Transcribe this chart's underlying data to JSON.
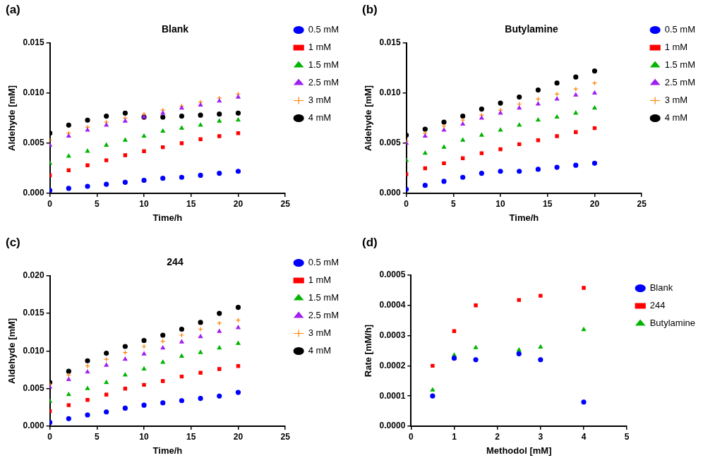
{
  "chart_data": [
    {
      "type": "scatter",
      "title": "Blank",
      "xlabel": "Time/h",
      "ylabel": "Aldehyde [mM]",
      "annotations": [
        "(a)"
      ],
      "legend": "right",
      "grid": false,
      "x": [
        0,
        2,
        4,
        6,
        8,
        10,
        12,
        14,
        16,
        18,
        20
      ],
      "xlim": [
        0,
        25
      ],
      "xticks": [
        0,
        5,
        10,
        15,
        20,
        25
      ],
      "ylim": [
        0,
        0.015
      ],
      "yticks": [
        {
          "value": 0,
          "label": "0.000"
        },
        {
          "value": 0.005,
          "label": "0.005"
        },
        {
          "value": 0.01,
          "label": "0.010"
        },
        {
          "value": 0.015,
          "label": "0.015"
        }
      ],
      "series": [
        {
          "name": "0.5 mM",
          "color": "#0000ff",
          "marker": "circle",
          "values": [
            0.0003,
            0.0005,
            0.0007,
            0.0009,
            0.0011,
            0.0013,
            0.0015,
            0.0016,
            0.0018,
            0.002,
            0.0022
          ]
        },
        {
          "name": "1 mM",
          "color": "#ff0000",
          "marker": "square",
          "values": [
            0.0018,
            0.0023,
            0.0028,
            0.0033,
            0.0038,
            0.0042,
            0.0046,
            0.005,
            0.0054,
            0.0057,
            0.006
          ]
        },
        {
          "name": "1.5 mM",
          "color": "#00b400",
          "marker": "triangle",
          "values": [
            0.003,
            0.0037,
            0.0042,
            0.0048,
            0.0053,
            0.0057,
            0.0062,
            0.0065,
            0.0068,
            0.0072,
            0.0073
          ]
        },
        {
          "name": "2.5 mM",
          "color": "#a020f0",
          "marker": "triangle",
          "values": [
            0.0048,
            0.0057,
            0.0063,
            0.0068,
            0.0072,
            0.0076,
            0.008,
            0.0085,
            0.0088,
            0.0092,
            0.0096
          ]
        },
        {
          "name": "3 mM",
          "color": "#ff8000",
          "marker": "cross",
          "values": [
            0.0053,
            0.006,
            0.0066,
            0.0071,
            0.0075,
            0.0079,
            0.0083,
            0.0087,
            0.0091,
            0.0095,
            0.0099
          ]
        },
        {
          "name": "4 mM",
          "color": "#000000",
          "marker": "circle",
          "values": [
            0.006,
            0.0068,
            0.0073,
            0.0077,
            0.008,
            0.0076,
            0.0076,
            0.0077,
            0.0078,
            0.0079,
            0.008
          ]
        }
      ]
    },
    {
      "type": "scatter",
      "title": "Butylamine",
      "xlabel": "Time/h",
      "ylabel": "Aldehyde [mM]",
      "annotations": [
        "(b)"
      ],
      "legend": "right",
      "grid": false,
      "x": [
        0,
        2,
        4,
        6,
        8,
        10,
        12,
        14,
        16,
        18,
        20
      ],
      "xlim": [
        0,
        25
      ],
      "xticks": [
        0,
        5,
        10,
        15,
        20,
        25
      ],
      "ylim": [
        0,
        0.015
      ],
      "yticks": [
        {
          "value": 0,
          "label": "0.000"
        },
        {
          "value": 0.005,
          "label": "0.005"
        },
        {
          "value": 0.01,
          "label": "0.010"
        },
        {
          "value": 0.015,
          "label": "0.015"
        }
      ],
      "series": [
        {
          "name": "0.5 mM",
          "color": "#0000ff",
          "marker": "circle",
          "values": [
            0.0004,
            0.0008,
            0.0012,
            0.0016,
            0.002,
            0.0022,
            0.0022,
            0.0024,
            0.0026,
            0.0028,
            0.003
          ]
        },
        {
          "name": "1 mM",
          "color": "#ff0000",
          "marker": "square",
          "values": [
            0.0019,
            0.0025,
            0.003,
            0.0035,
            0.004,
            0.0044,
            0.0049,
            0.0053,
            0.0057,
            0.0061,
            0.0065
          ]
        },
        {
          "name": "1.5 mM",
          "color": "#00b400",
          "marker": "triangle",
          "values": [
            0.0033,
            0.004,
            0.0046,
            0.0053,
            0.0058,
            0.0063,
            0.0068,
            0.0073,
            0.0076,
            0.008,
            0.0085
          ]
        },
        {
          "name": "2.5 mM",
          "color": "#a020f0",
          "marker": "triangle",
          "values": [
            0.005,
            0.0057,
            0.0063,
            0.0069,
            0.0075,
            0.008,
            0.0085,
            0.0089,
            0.0094,
            0.0098,
            0.01
          ]
        },
        {
          "name": "3 mM",
          "color": "#ff8000",
          "marker": "cross",
          "values": [
            0.0052,
            0.006,
            0.0067,
            0.0073,
            0.0078,
            0.0083,
            0.0089,
            0.0094,
            0.0099,
            0.0104,
            0.011
          ]
        },
        {
          "name": "4 mM",
          "color": "#000000",
          "marker": "circle",
          "values": [
            0.0058,
            0.0064,
            0.0071,
            0.0077,
            0.0084,
            0.009,
            0.0096,
            0.0103,
            0.011,
            0.0116,
            0.0122
          ]
        }
      ]
    },
    {
      "type": "scatter",
      "title": "244",
      "xlabel": "Time/h",
      "ylabel": "Aldehyde [mM]",
      "annotations": [
        "(c)"
      ],
      "legend": "right",
      "grid": false,
      "x": [
        0,
        2,
        4,
        6,
        8,
        10,
        12,
        14,
        16,
        18,
        20
      ],
      "xlim": [
        0,
        25
      ],
      "xticks": [
        0,
        5,
        10,
        15,
        20,
        25
      ],
      "ylim": [
        0,
        0.02
      ],
      "yticks": [
        {
          "value": 0,
          "label": "0.000"
        },
        {
          "value": 0.005,
          "label": "0.005"
        },
        {
          "value": 0.01,
          "label": "0.010"
        },
        {
          "value": 0.015,
          "label": "0.015"
        },
        {
          "value": 0.02,
          "label": "0.020"
        }
      ],
      "series": [
        {
          "name": "0.5 mM",
          "color": "#0000ff",
          "marker": "circle",
          "values": [
            0.0005,
            0.001,
            0.0015,
            0.0019,
            0.0024,
            0.0028,
            0.0031,
            0.0034,
            0.0037,
            0.004,
            0.0045
          ]
        },
        {
          "name": "1 mM",
          "color": "#ff0000",
          "marker": "square",
          "values": [
            0.002,
            0.0028,
            0.0035,
            0.0042,
            0.005,
            0.0055,
            0.006,
            0.0066,
            0.0071,
            0.0076,
            0.008
          ]
        },
        {
          "name": "1.5 mM",
          "color": "#00b400",
          "marker": "triangle",
          "values": [
            0.0033,
            0.0042,
            0.005,
            0.0058,
            0.0068,
            0.0076,
            0.0085,
            0.0093,
            0.0098,
            0.0104,
            0.011
          ]
        },
        {
          "name": "2.5 mM",
          "color": "#a020f0",
          "marker": "triangle",
          "values": [
            0.0052,
            0.0062,
            0.0072,
            0.0081,
            0.0089,
            0.0096,
            0.0104,
            0.0112,
            0.0119,
            0.0126,
            0.0131
          ]
        },
        {
          "name": "3 mM",
          "color": "#ff8000",
          "marker": "cross",
          "values": [
            0.0056,
            0.0068,
            0.008,
            0.0089,
            0.0098,
            0.0106,
            0.0113,
            0.0121,
            0.0129,
            0.0137,
            0.0141
          ]
        },
        {
          "name": "4 mM",
          "color": "#000000",
          "marker": "circle",
          "values": [
            0.0058,
            0.0073,
            0.0087,
            0.0097,
            0.0106,
            0.0114,
            0.0121,
            0.0129,
            0.0138,
            0.015,
            0.0158
          ]
        }
      ]
    },
    {
      "type": "scatter",
      "xlabel": "Methodol [mM]",
      "ylabel": "Rate [mM/h]",
      "annotations": [
        "(d)"
      ],
      "legend": "right",
      "grid": false,
      "x": [
        0.5,
        1,
        1.5,
        2.5,
        3,
        4
      ],
      "xlim": [
        0,
        5
      ],
      "xticks": [
        0,
        1,
        2,
        3,
        4,
        5
      ],
      "ylim": [
        0,
        0.0005
      ],
      "yticks": [
        {
          "value": 0,
          "label": "0.0000"
        },
        {
          "value": 0.0001,
          "label": "0.0001"
        },
        {
          "value": 0.0002,
          "label": "0.0002"
        },
        {
          "value": 0.0003,
          "label": "0.0003"
        },
        {
          "value": 0.0004,
          "label": "0.0004"
        },
        {
          "value": 0.0005,
          "label": "0.0005"
        }
      ],
      "series": [
        {
          "name": "Blank",
          "color": "#0000ff",
          "marker": "circle",
          "values": [
            0.0001,
            0.000225,
            0.00022,
            0.00024,
            0.00022,
            8e-05
          ]
        },
        {
          "name": "244",
          "color": "#ff0000",
          "marker": "square",
          "values": [
            0.0002,
            0.000315,
            0.0004,
            0.000418,
            0.000432,
            0.000458
          ]
        },
        {
          "name": "Butylamine",
          "color": "#00b400",
          "marker": "triangle",
          "values": [
            0.00012,
            0.000235,
            0.00026,
            0.000252,
            0.000262,
            0.00032
          ]
        }
      ]
    }
  ]
}
